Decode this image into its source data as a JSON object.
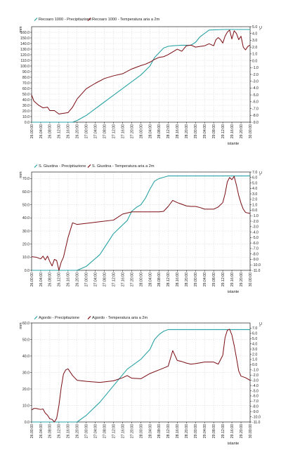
{
  "colors": {
    "precip": "#2aa3a5",
    "temp": "#7a0c12"
  },
  "chart_data": [
    {
      "type": "line",
      "legend_position": "top-left",
      "grid": true,
      "xlabel": "istante",
      "ylabel_left": "mm",
      "ylabel_right": "°C",
      "x_ticks": [
        "26.00:00",
        "26.04:00",
        "26.08:00",
        "26.12:00",
        "26.16:00",
        "26.20:00",
        "27.00:00",
        "27.04:00",
        "27.08:00",
        "27.12:00",
        "27.16:00",
        "27.20:00",
        "28.00:00",
        "28.04:00",
        "28.08:00",
        "28.12:00",
        "28.16:00",
        "28.20:00",
        "29.00:00",
        "29.04:00",
        "29.08:00",
        "29.12:00",
        "29.16:00",
        "29.20:00",
        "30.00:00"
      ],
      "ylim_left": [
        0,
        170
      ],
      "y_ticks_left": [
        "0.0",
        "10.0",
        "20.0",
        "30.0",
        "40.0",
        "50.0",
        "60.0",
        "70.0",
        "80.0",
        "90.0",
        "100.0",
        "110.0",
        "120.0",
        "130.0",
        "140.0",
        "150.0",
        "160.0"
      ],
      "ylim_right": [
        -9,
        5
      ],
      "y_ticks_right": [
        "-9.0",
        "-8.0",
        "-7.0",
        "-6.0",
        "-5.0",
        "-4.0",
        "-3.0",
        "-2.0",
        "-1.0",
        "0.0",
        "1.0",
        "2.0",
        "3.0",
        "4.0",
        "5.0"
      ],
      "series": [
        {
          "name": "Recoaro 1000 - Precipitazione",
          "axis": "left",
          "x": [
            0,
            8,
            14,
            18,
            20,
            24,
            30,
            36,
            42,
            48,
            52,
            54,
            58,
            60,
            62,
            66,
            70,
            72,
            74,
            78,
            84,
            90,
            96
          ],
          "y": [
            0,
            0,
            0,
            0,
            3,
            12,
            30,
            48,
            66,
            84,
            100,
            115,
            132,
            135,
            136,
            137,
            137,
            142,
            152,
            164,
            165,
            165,
            165
          ]
        },
        {
          "name": "Recoaro 1000 - Temperatura aria a 2m",
          "axis": "right",
          "x": [
            0,
            1,
            3,
            5,
            7,
            8,
            10,
            12,
            14,
            16,
            17,
            18,
            20,
            24,
            28,
            32,
            36,
            40,
            44,
            48,
            50,
            52,
            54,
            56,
            58,
            60,
            62,
            64,
            66,
            68,
            70,
            72,
            74,
            76,
            78,
            80,
            81,
            82,
            83,
            84,
            85,
            86,
            87,
            88,
            89,
            90,
            91,
            92,
            93,
            94,
            95,
            96
          ],
          "y": [
            -5.0,
            -5.9,
            -6.5,
            -6.9,
            -6.8,
            -7.3,
            -7.3,
            -7.8,
            -7.7,
            -7.6,
            -7.2,
            -6.8,
            -5.6,
            -4.1,
            -3.3,
            -2.6,
            -2.2,
            -1.9,
            -1.2,
            -0.7,
            -0.5,
            -0.2,
            0.2,
            0.5,
            0.6,
            0.9,
            1.3,
            1.7,
            1.4,
            2.2,
            2.3,
            2.0,
            2.1,
            2.2,
            2.5,
            2.2,
            3.1,
            3.4,
            3.1,
            2.6,
            3.6,
            4.2,
            4.5,
            3.2,
            4.4,
            4.0,
            3.1,
            3.6,
            2.0,
            1.6,
            2.1,
            2.3
          ]
        }
      ]
    },
    {
      "type": "line",
      "legend_position": "top-left",
      "grid": true,
      "xlabel": "istante",
      "ylabel_left": "mm",
      "ylabel_right": "°C",
      "x_ticks": [
        "26.00:00",
        "26.04:00",
        "26.08:00",
        "26.12:00",
        "26.16:00",
        "26.20:00",
        "27.00:00",
        "27.04:00",
        "27.08:00",
        "27.12:00",
        "27.16:00",
        "27.20:00",
        "28.00:00",
        "28.04:00",
        "28.08:00",
        "28.12:00",
        "28.16:00",
        "28.20:00",
        "29.00:00",
        "29.04:00",
        "29.08:00",
        "29.12:00",
        "29.16:00",
        "29.20:00",
        "30.00:00"
      ],
      "ylim_left": [
        0,
        75
      ],
      "y_ticks_left": [
        "0.0",
        "10.0",
        "20.0",
        "30.0",
        "40.0",
        "50.0",
        "60.0",
        "70.0"
      ],
      "ylim_right": [
        -11,
        7
      ],
      "y_ticks_right": [
        "-11.0",
        "-10.0",
        "-9.0",
        "-8.0",
        "-7.0",
        "-6.0",
        "-5.0",
        "-4.0",
        "-3.0",
        "-2.0",
        "-1.0",
        "0.0",
        "1.0",
        "2.0",
        "3.0",
        "4.0",
        "5.0",
        "6.0",
        "7.0"
      ],
      "series": [
        {
          "name": "S. Giustina - Precipitazione",
          "axis": "left",
          "x": [
            0,
            14,
            16,
            18,
            20,
            24,
            30,
            36,
            42,
            44,
            46,
            48,
            50,
            52,
            54,
            56,
            58,
            60,
            64,
            70,
            78,
            86,
            92,
            96
          ],
          "y": [
            0,
            0,
            0,
            0,
            0,
            3,
            12,
            28,
            38,
            45,
            48,
            50,
            55,
            62,
            68,
            70,
            71,
            72,
            72,
            72,
            72,
            72,
            72,
            72
          ]
        },
        {
          "name": "S. Giustina - Temperatura aria a 2m",
          "axis": "right",
          "x": [
            0,
            2,
            4,
            5,
            6,
            7,
            8,
            9,
            10,
            11,
            12,
            13,
            14,
            16,
            18,
            20,
            24,
            30,
            36,
            40,
            44,
            48,
            52,
            56,
            58,
            60,
            62,
            64,
            66,
            68,
            70,
            72,
            74,
            76,
            78,
            80,
            82,
            84,
            85,
            86,
            87,
            88,
            89,
            90,
            91,
            92,
            93,
            94,
            96
          ],
          "y": [
            -8.5,
            -8.6,
            -8.9,
            -8.4,
            -9.1,
            -8.4,
            -9.4,
            -10.2,
            -9.0,
            -9.2,
            -11.0,
            -9.5,
            -8.6,
            -5.0,
            -2.3,
            -2.6,
            -2.4,
            -2.1,
            -1.8,
            -0.7,
            -0.3,
            -0.3,
            -0.3,
            -0.3,
            -0.2,
            0.7,
            1.8,
            1.4,
            1.1,
            0.8,
            0.7,
            0.7,
            0.5,
            0.2,
            0.2,
            0.2,
            0.6,
            1.4,
            3.0,
            5.2,
            6.0,
            5.6,
            6.2,
            4.6,
            2.7,
            1.3,
            0.2,
            -0.4,
            -0.6
          ]
        }
      ]
    },
    {
      "type": "line",
      "legend_position": "top-left",
      "grid": true,
      "xlabel": "istante",
      "ylabel_left": "mm",
      "ylabel_right": "°C",
      "x_ticks": [
        "26.00:00",
        "26.04:00",
        "26.08:00",
        "26.12:00",
        "26.16:00",
        "26.20:00",
        "27.00:00",
        "27.04:00",
        "27.08:00",
        "27.12:00",
        "27.16:00",
        "27.20:00",
        "28.00:00",
        "28.04:00",
        "28.08:00",
        "28.12:00",
        "28.16:00",
        "28.20:00",
        "29.00:00",
        "29.04:00",
        "29.08:00",
        "29.12:00",
        "29.16:00",
        "29.20:00",
        "30.00:00"
      ],
      "ylim_left": [
        0,
        60
      ],
      "y_ticks_left": [
        "0.0",
        "10.0",
        "20.0",
        "30.0",
        "40.0",
        "50.0",
        "60.0"
      ],
      "ylim_right": [
        -11,
        8
      ],
      "y_ticks_right": [
        "-11.0",
        "-10.0",
        "-9.0",
        "-8.0",
        "-7.0",
        "-6.0",
        "-5.0",
        "-4.0",
        "-3.0",
        "-2.0",
        "-1.0",
        "0.0",
        "1.0",
        "2.0",
        "3.0",
        "4.0",
        "5.0",
        "6.0",
        "7.0"
      ],
      "series": [
        {
          "name": "Agordo - Precipitazione",
          "axis": "left",
          "x": [
            0,
            14,
            16,
            18,
            20,
            24,
            30,
            36,
            42,
            46,
            48,
            52,
            54,
            56,
            58,
            60,
            62,
            66,
            70,
            78,
            86,
            92,
            96
          ],
          "y": [
            0,
            0,
            0,
            0,
            0,
            4,
            12,
            22,
            32,
            36,
            38,
            44,
            50,
            53,
            55,
            56,
            56,
            56,
            56,
            56,
            56,
            56,
            56
          ]
        },
        {
          "name": "Agordo - Temperatura aria a 2m",
          "axis": "right",
          "x": [
            0,
            1,
            2,
            4,
            5,
            6,
            7,
            8,
            9,
            10,
            11,
            12,
            13,
            14,
            15,
            16,
            18,
            20,
            24,
            30,
            36,
            40,
            42,
            44,
            48,
            52,
            56,
            60,
            62,
            64,
            66,
            68,
            70,
            72,
            76,
            80,
            82,
            84,
            85,
            86,
            87,
            88,
            89,
            90,
            91,
            92,
            94,
            96
          ],
          "y": [
            -8.7,
            -8.4,
            -8.4,
            -8.6,
            -8.5,
            -9.3,
            -9.7,
            -10.4,
            -10.5,
            -11.0,
            -10.3,
            -7.8,
            -4.4,
            -1.8,
            -1.0,
            -0.8,
            -2.1,
            -3.0,
            -3.2,
            -3.4,
            -3.1,
            -2.5,
            -2.1,
            -2.6,
            -2.7,
            -1.7,
            -1.0,
            -0.3,
            2.7,
            0.8,
            0.6,
            0.3,
            0.1,
            0.2,
            0.5,
            0.5,
            0.1,
            1.8,
            5.2,
            6.6,
            6.8,
            5.7,
            3.7,
            1.3,
            -1.2,
            -2.2,
            -2.5,
            -3.0
          ]
        }
      ]
    }
  ]
}
